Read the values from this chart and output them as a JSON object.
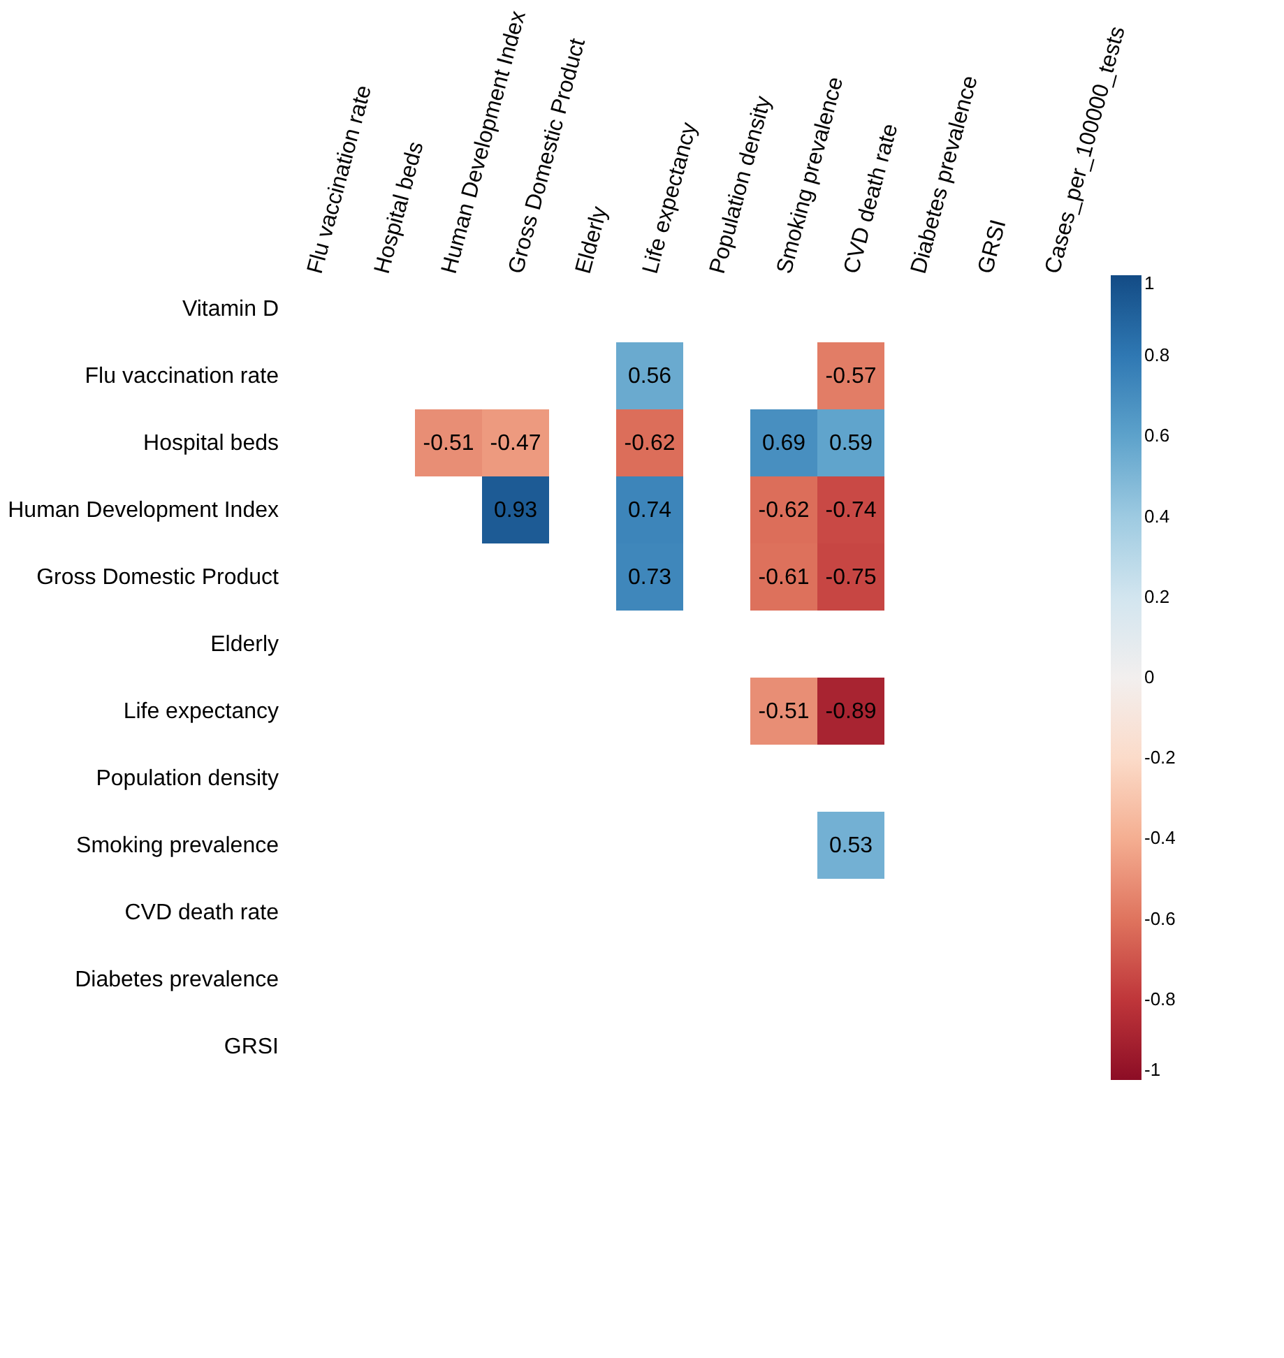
{
  "chart_data": {
    "type": "heatmap",
    "categories": [
      "Flu vaccination rate",
      "Hospital beds",
      "Human Development Index",
      "Gross Domestic Product",
      "Elderly",
      "Life expectancy",
      "Population density",
      "Smoking prevalence",
      "CVD death rate",
      "Diabetes prevalence",
      "GRSI",
      "Cases_per_100000_tests"
    ],
    "y_categories": [
      "Vitamin D",
      "Flu vaccination rate",
      "Hospital beds",
      "Human Development Index",
      "Gross Domestic Product",
      "Elderly",
      "Life expectancy",
      "Population density",
      "Smoking prevalence",
      "CVD death rate",
      "Diabetes prevalence",
      "GRSI"
    ],
    "cells": [
      [
        null,
        null,
        null,
        null,
        null,
        null,
        null,
        null,
        null,
        null,
        null,
        null
      ],
      [
        null,
        null,
        null,
        null,
        null,
        0.56,
        null,
        null,
        -0.57,
        null,
        null,
        null
      ],
      [
        null,
        null,
        -0.51,
        -0.47,
        null,
        -0.62,
        null,
        0.69,
        0.59,
        null,
        null,
        null
      ],
      [
        null,
        null,
        null,
        0.93,
        null,
        0.74,
        null,
        -0.62,
        -0.74,
        null,
        null,
        null
      ],
      [
        null,
        null,
        null,
        null,
        null,
        0.73,
        null,
        -0.61,
        -0.75,
        null,
        null,
        null
      ],
      [
        null,
        null,
        null,
        null,
        null,
        null,
        null,
        null,
        null,
        null,
        null,
        null
      ],
      [
        null,
        null,
        null,
        null,
        null,
        null,
        null,
        -0.51,
        -0.89,
        null,
        null,
        null
      ],
      [
        null,
        null,
        null,
        null,
        null,
        null,
        null,
        null,
        null,
        null,
        null,
        null
      ],
      [
        null,
        null,
        null,
        null,
        null,
        null,
        null,
        null,
        0.53,
        null,
        null,
        null
      ],
      [
        null,
        null,
        null,
        null,
        null,
        null,
        null,
        null,
        null,
        null,
        null,
        null
      ],
      [
        null,
        null,
        null,
        null,
        null,
        null,
        null,
        null,
        null,
        null,
        null,
        null
      ],
      [
        null,
        null,
        null,
        null,
        null,
        null,
        null,
        null,
        null,
        null,
        null,
        null
      ]
    ],
    "clim": [
      -1,
      1
    ],
    "cticks": [
      -1,
      -0.8,
      -0.6,
      -0.4,
      -0.2,
      0,
      0.2,
      0.4,
      0.6,
      0.8,
      1
    ],
    "data_labels": true,
    "grid": false
  }
}
